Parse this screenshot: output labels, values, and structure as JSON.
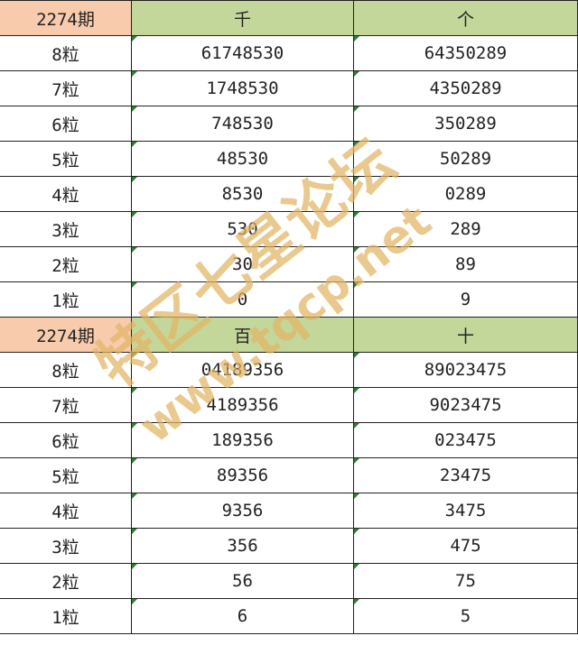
{
  "sections": [
    {
      "period": "2274期",
      "columns": [
        "千",
        "个"
      ],
      "rows": [
        {
          "label": "8粒",
          "values": [
            "61748530",
            "64350289"
          ]
        },
        {
          "label": "7粒",
          "values": [
            "1748530",
            "4350289"
          ]
        },
        {
          "label": "6粒",
          "values": [
            "748530",
            "350289"
          ]
        },
        {
          "label": "5粒",
          "values": [
            "48530",
            "50289"
          ]
        },
        {
          "label": "4粒",
          "values": [
            "8530",
            "0289"
          ]
        },
        {
          "label": "3粒",
          "values": [
            "530",
            "289"
          ]
        },
        {
          "label": "2粒",
          "values": [
            "30",
            "89"
          ]
        },
        {
          "label": "1粒",
          "values": [
            "0",
            "9"
          ]
        }
      ]
    },
    {
      "period": "2274期",
      "columns": [
        "百",
        "十"
      ],
      "rows": [
        {
          "label": "8粒",
          "values": [
            "04189356",
            "89023475"
          ]
        },
        {
          "label": "7粒",
          "values": [
            "4189356",
            "9023475"
          ]
        },
        {
          "label": "6粒",
          "values": [
            "189356",
            "023475"
          ]
        },
        {
          "label": "5粒",
          "values": [
            "89356",
            "23475"
          ]
        },
        {
          "label": "4粒",
          "values": [
            "9356",
            "3475"
          ]
        },
        {
          "label": "3粒",
          "values": [
            "356",
            "475"
          ]
        },
        {
          "label": "2粒",
          "values": [
            "56",
            "75"
          ]
        },
        {
          "label": "1粒",
          "values": [
            "6",
            "5"
          ]
        }
      ]
    }
  ],
  "watermark": {
    "line1": "特区七星论坛",
    "line2": "www.tqcp.net"
  },
  "colors": {
    "period_header": "#f8cbad",
    "digit_header": "#c4d79b",
    "watermark": "#e2b464"
  }
}
